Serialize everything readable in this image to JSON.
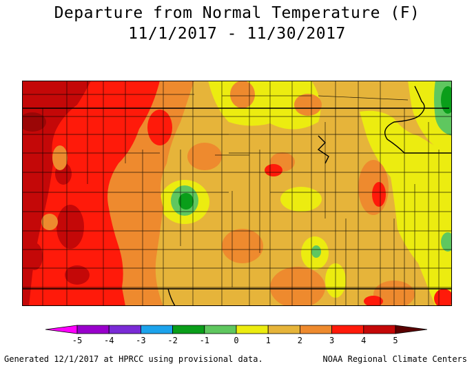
{
  "title": "Departure from Normal Temperature (F)",
  "subtitle": "11/1/2017 - 11/30/2017",
  "legend": {
    "ticks": [
      "-5",
      "-4",
      "-3",
      "-2",
      "-1",
      "0",
      "1",
      "2",
      "3",
      "4",
      "5"
    ],
    "colors": [
      "#ff00ff",
      "#9900cc",
      "#7a2bd6",
      "#1ca3ec",
      "#0a9e1a",
      "#5fc75f",
      "#ecec10",
      "#e6b43a",
      "#ee8a2e",
      "#ff1a0a",
      "#c40808",
      "#5a0000"
    ]
  },
  "footer": {
    "left": "Generated 12/1/2017 at HPRCC using provisional data.",
    "right": "NOAA Regional Climate Centers"
  },
  "colors": {
    "plus1": "#ecec10",
    "plus2": "#e6b43a",
    "plus3": "#ee8a2e",
    "plus4": "#ff1a0a",
    "plus5": "#c40808",
    "minus1": "#5fc75f",
    "minus2": "#0a9e1a"
  }
}
